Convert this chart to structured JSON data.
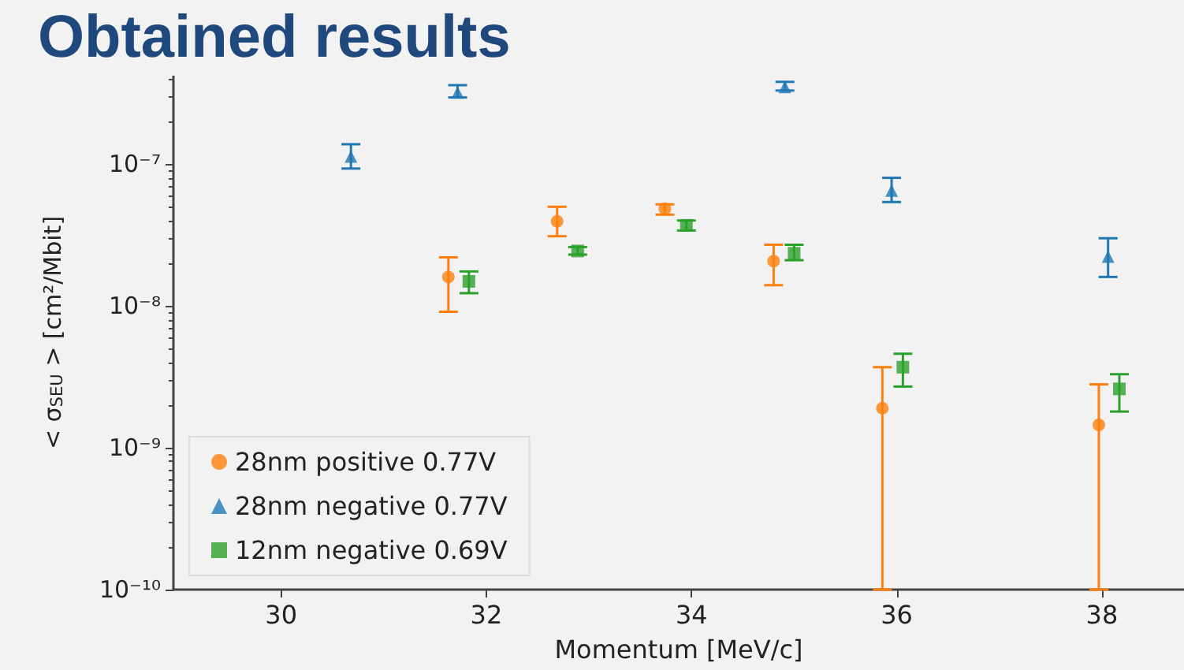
{
  "chart_data": {
    "type": "scatter",
    "title": "Obtained results",
    "xlabel": "Momentum [MeV/c]",
    "ylabel": "< σ$_{SEU}$ > [cm²/Mbit]",
    "log": "y",
    "grid": false,
    "legend": "bottom left",
    "xlim": [
      28.95,
      38.8
    ],
    "xticks": [
      30,
      32,
      34,
      36,
      38
    ],
    "ylim": [
      1e-10,
      4.2e-07
    ],
    "yticks": [
      {
        "value": 1e-10,
        "label": "10⁻¹⁰"
      },
      {
        "value": 1e-09,
        "label": "10⁻⁹"
      },
      {
        "value": 1e-08,
        "label": "10⁻⁸"
      },
      {
        "value": 1e-07,
        "label": "10⁻⁷"
      }
    ],
    "series": [
      {
        "name": "28nm positive 0.77V",
        "color": "#ff7f0e",
        "marker": "circle",
        "x": [
          31.63,
          32.69,
          33.74,
          34.8,
          35.86,
          37.97
        ],
        "values": [
          1.6e-08,
          3.95e-08,
          4.85e-08,
          2.07e-08,
          1.9e-09,
          1.45e-09
        ],
        "errors": [
          [
            9.1e-09,
            2.2e-08
          ],
          [
            3.1e-08,
            5e-08
          ],
          [
            4.4e-08,
            5.2e-08
          ],
          [
            1.4e-08,
            2.7e-08
          ],
          [
            1e-10,
            3.7e-09
          ],
          [
            1e-10,
            2.8e-09
          ]
        ]
      },
      {
        "name": "28nm negative 0.77V",
        "color": "#1f77b4",
        "marker": "triangle",
        "x": [
          30.68,
          31.72,
          34.91,
          35.95,
          38.06
        ],
        "values": [
          1.13e-07,
          3.2e-07,
          3.5e-07,
          6.5e-08,
          2.23e-08
        ],
        "errors": [
          [
            9.3e-08,
            1.38e-07
          ],
          [
            2.95e-07,
            3.6e-07
          ],
          [
            3.3e-07,
            3.8e-07
          ],
          [
            5.4e-08,
            8e-08
          ],
          [
            1.6e-08,
            3e-08
          ]
        ]
      },
      {
        "name": "12nm negative 0.69V",
        "color": "#2ca02c",
        "marker": "square",
        "x": [
          31.83,
          32.89,
          33.95,
          35.0,
          36.06,
          38.17
        ],
        "values": [
          1.49e-08,
          2.44e-08,
          3.7e-08,
          2.35e-08,
          3.7e-09,
          2.6e-09
        ],
        "errors": [
          [
            1.23e-08,
            1.75e-08
          ],
          [
            2.3e-08,
            2.6e-08
          ],
          [
            3.4e-08,
            4e-08
          ],
          [
            2.1e-08,
            2.7e-08
          ],
          [
            2.7e-09,
            4.6e-09
          ],
          [
            1.8e-09,
            3.3e-09
          ]
        ]
      }
    ]
  }
}
